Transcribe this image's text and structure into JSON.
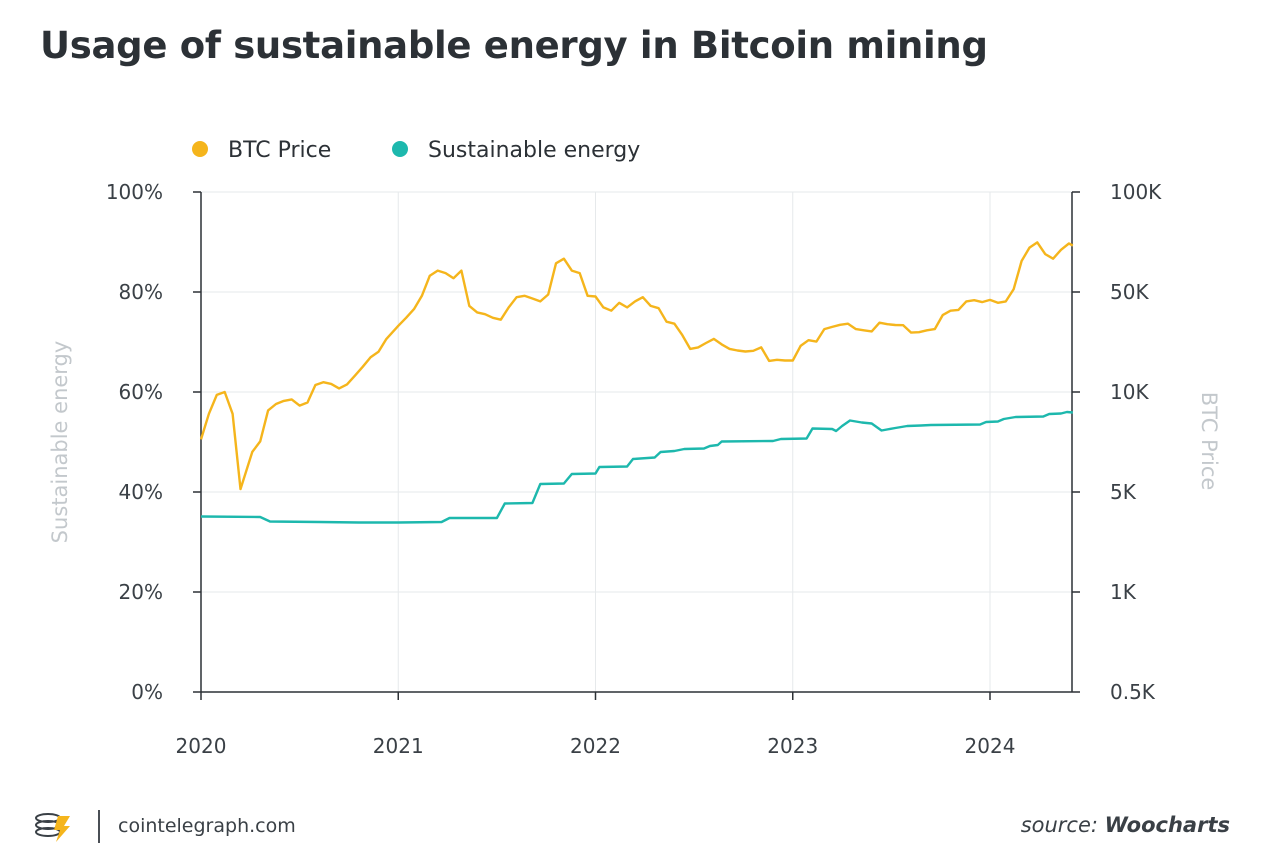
{
  "title": "Usage of sustainable energy in Bitcoin mining",
  "footer": {
    "brand": "cointelegraph.com",
    "source_prefix": "source:",
    "source_name": "Woocharts"
  },
  "colors": {
    "btc": "#f5b51c",
    "energy": "#1db8ad",
    "grid": "#e6e9eb",
    "axis": "#2c3136"
  },
  "chart_data": {
    "type": "line",
    "title": "Usage of sustainable energy in Bitcoin mining",
    "legend": [
      "BTC Price",
      "Sustainable energy"
    ],
    "legend_position": "top-left",
    "xlabel": "",
    "ylabel_left": "Sustainable energy",
    "ylabel_right": "BTC Price",
    "x_range": [
      2020.0,
      2024.42
    ],
    "x_ticks": [
      2020,
      2021,
      2022,
      2023,
      2024
    ],
    "x_tick_labels": [
      "2020",
      "2021",
      "2022",
      "2023",
      "2024"
    ],
    "y_left_range": [
      0,
      100
    ],
    "y_left_ticks": [
      0,
      20,
      40,
      60,
      80,
      100
    ],
    "y_left_tick_labels": [
      "0%",
      "20%",
      "40%",
      "60%",
      "80%",
      "100%"
    ],
    "y_right_ticks": [
      500,
      1000,
      5000,
      10000,
      50000,
      100000
    ],
    "y_right_tick_labels": [
      "0.5K",
      "1K",
      "5K",
      "10K",
      "50K",
      "100K"
    ],
    "y_right_scale": "piecewise-log",
    "series": [
      {
        "name": "Sustainable energy",
        "axis": "left",
        "points": [
          [
            2020.0,
            35.1
          ],
          [
            2020.3,
            35.0
          ],
          [
            2020.35,
            34.1
          ],
          [
            2020.6,
            34.0
          ],
          [
            2020.8,
            33.9
          ],
          [
            2021.0,
            33.9
          ],
          [
            2021.22,
            34.0
          ],
          [
            2021.26,
            34.8
          ],
          [
            2021.5,
            34.8
          ],
          [
            2021.54,
            37.7
          ],
          [
            2021.68,
            37.8
          ],
          [
            2021.72,
            41.6
          ],
          [
            2021.84,
            41.7
          ],
          [
            2021.88,
            43.6
          ],
          [
            2022.0,
            43.7
          ],
          [
            2022.02,
            45.0
          ],
          [
            2022.16,
            45.1
          ],
          [
            2022.19,
            46.6
          ],
          [
            2022.3,
            46.9
          ],
          [
            2022.33,
            48.0
          ],
          [
            2022.4,
            48.2
          ],
          [
            2022.45,
            48.6
          ],
          [
            2022.55,
            48.7
          ],
          [
            2022.58,
            49.2
          ],
          [
            2022.62,
            49.4
          ],
          [
            2022.64,
            50.1
          ],
          [
            2022.9,
            50.2
          ],
          [
            2022.94,
            50.6
          ],
          [
            2023.07,
            50.7
          ],
          [
            2023.1,
            52.7
          ],
          [
            2023.2,
            52.6
          ],
          [
            2023.22,
            52.2
          ],
          [
            2023.25,
            53.2
          ],
          [
            2023.29,
            54.3
          ],
          [
            2023.35,
            53.9
          ],
          [
            2023.4,
            53.7
          ],
          [
            2023.45,
            52.3
          ],
          [
            2023.52,
            52.8
          ],
          [
            2023.58,
            53.2
          ],
          [
            2023.65,
            53.3
          ],
          [
            2023.7,
            53.4
          ],
          [
            2023.95,
            53.5
          ],
          [
            2023.98,
            54.0
          ],
          [
            2024.04,
            54.1
          ],
          [
            2024.07,
            54.6
          ],
          [
            2024.13,
            55.0
          ],
          [
            2024.27,
            55.1
          ],
          [
            2024.3,
            55.6
          ],
          [
            2024.36,
            55.7
          ],
          [
            2024.39,
            56.0
          ],
          [
            2024.42,
            55.9
          ]
        ]
      },
      {
        "name": "BTC Price",
        "axis": "right",
        "points": [
          [
            2020.0,
            7200
          ],
          [
            2020.04,
            8600
          ],
          [
            2020.08,
            9800
          ],
          [
            2020.12,
            10000
          ],
          [
            2020.16,
            8600
          ],
          [
            2020.2,
            5100
          ],
          [
            2020.26,
            6600
          ],
          [
            2020.3,
            7100
          ],
          [
            2020.34,
            8800
          ],
          [
            2020.38,
            9200
          ],
          [
            2020.42,
            9400
          ],
          [
            2020.46,
            9500
          ],
          [
            2020.5,
            9100
          ],
          [
            2020.54,
            9300
          ],
          [
            2020.58,
            11200
          ],
          [
            2020.62,
            11700
          ],
          [
            2020.66,
            11400
          ],
          [
            2020.7,
            10600
          ],
          [
            2020.74,
            11300
          ],
          [
            2020.78,
            13000
          ],
          [
            2020.82,
            15000
          ],
          [
            2020.86,
            17500
          ],
          [
            2020.9,
            19100
          ],
          [
            2020.94,
            23500
          ],
          [
            2021.0,
            29000
          ],
          [
            2021.04,
            33000
          ],
          [
            2021.08,
            38000
          ],
          [
            2021.12,
            47000
          ],
          [
            2021.16,
            56000
          ],
          [
            2021.2,
            58000
          ],
          [
            2021.24,
            57000
          ],
          [
            2021.28,
            55000
          ],
          [
            2021.32,
            58000
          ],
          [
            2021.36,
            40000
          ],
          [
            2021.4,
            36000
          ],
          [
            2021.44,
            35000
          ],
          [
            2021.48,
            33000
          ],
          [
            2021.52,
            32000
          ],
          [
            2021.56,
            39000
          ],
          [
            2021.6,
            46000
          ],
          [
            2021.64,
            47000
          ],
          [
            2021.68,
            45000
          ],
          [
            2021.72,
            43000
          ],
          [
            2021.76,
            48000
          ],
          [
            2021.8,
            61000
          ],
          [
            2021.84,
            63000
          ],
          [
            2021.88,
            58000
          ],
          [
            2021.92,
            57000
          ],
          [
            2021.96,
            47000
          ],
          [
            2022.0,
            46500
          ],
          [
            2022.04,
            39000
          ],
          [
            2022.08,
            37000
          ],
          [
            2022.12,
            42000
          ],
          [
            2022.16,
            39000
          ],
          [
            2022.2,
            43000
          ],
          [
            2022.24,
            46000
          ],
          [
            2022.28,
            40000
          ],
          [
            2022.32,
            38500
          ],
          [
            2022.36,
            31000
          ],
          [
            2022.4,
            30000
          ],
          [
            2022.44,
            25000
          ],
          [
            2022.48,
            20000
          ],
          [
            2022.52,
            20500
          ],
          [
            2022.56,
            22000
          ],
          [
            2022.6,
            23500
          ],
          [
            2022.64,
            21500
          ],
          [
            2022.68,
            20000
          ],
          [
            2022.72,
            19500
          ],
          [
            2022.76,
            19200
          ],
          [
            2022.8,
            19400
          ],
          [
            2022.84,
            20500
          ],
          [
            2022.88,
            16500
          ],
          [
            2022.92,
            16800
          ],
          [
            2022.96,
            16600
          ],
          [
            2023.0,
            16600
          ],
          [
            2023.04,
            21000
          ],
          [
            2023.08,
            23000
          ],
          [
            2023.12,
            22500
          ],
          [
            2023.16,
            27500
          ],
          [
            2023.2,
            28500
          ],
          [
            2023.24,
            29500
          ],
          [
            2023.28,
            30000
          ],
          [
            2023.32,
            27500
          ],
          [
            2023.36,
            27000
          ],
          [
            2023.4,
            26500
          ],
          [
            2023.44,
            30500
          ],
          [
            2023.48,
            29800
          ],
          [
            2023.52,
            29400
          ],
          [
            2023.56,
            29300
          ],
          [
            2023.6,
            26000
          ],
          [
            2023.64,
            26200
          ],
          [
            2023.68,
            27000
          ],
          [
            2023.72,
            27500
          ],
          [
            2023.76,
            34500
          ],
          [
            2023.8,
            37000
          ],
          [
            2023.84,
            37500
          ],
          [
            2023.88,
            43000
          ],
          [
            2023.92,
            43800
          ],
          [
            2023.96,
            42500
          ],
          [
            2024.0,
            44000
          ],
          [
            2024.04,
            42000
          ],
          [
            2024.08,
            43000
          ],
          [
            2024.12,
            51000
          ],
          [
            2024.16,
            62000
          ],
          [
            2024.2,
            68000
          ],
          [
            2024.24,
            70500
          ],
          [
            2024.28,
            65000
          ],
          [
            2024.32,
            63000
          ],
          [
            2024.36,
            67000
          ],
          [
            2024.4,
            70000
          ],
          [
            2024.42,
            69000
          ]
        ]
      }
    ]
  }
}
